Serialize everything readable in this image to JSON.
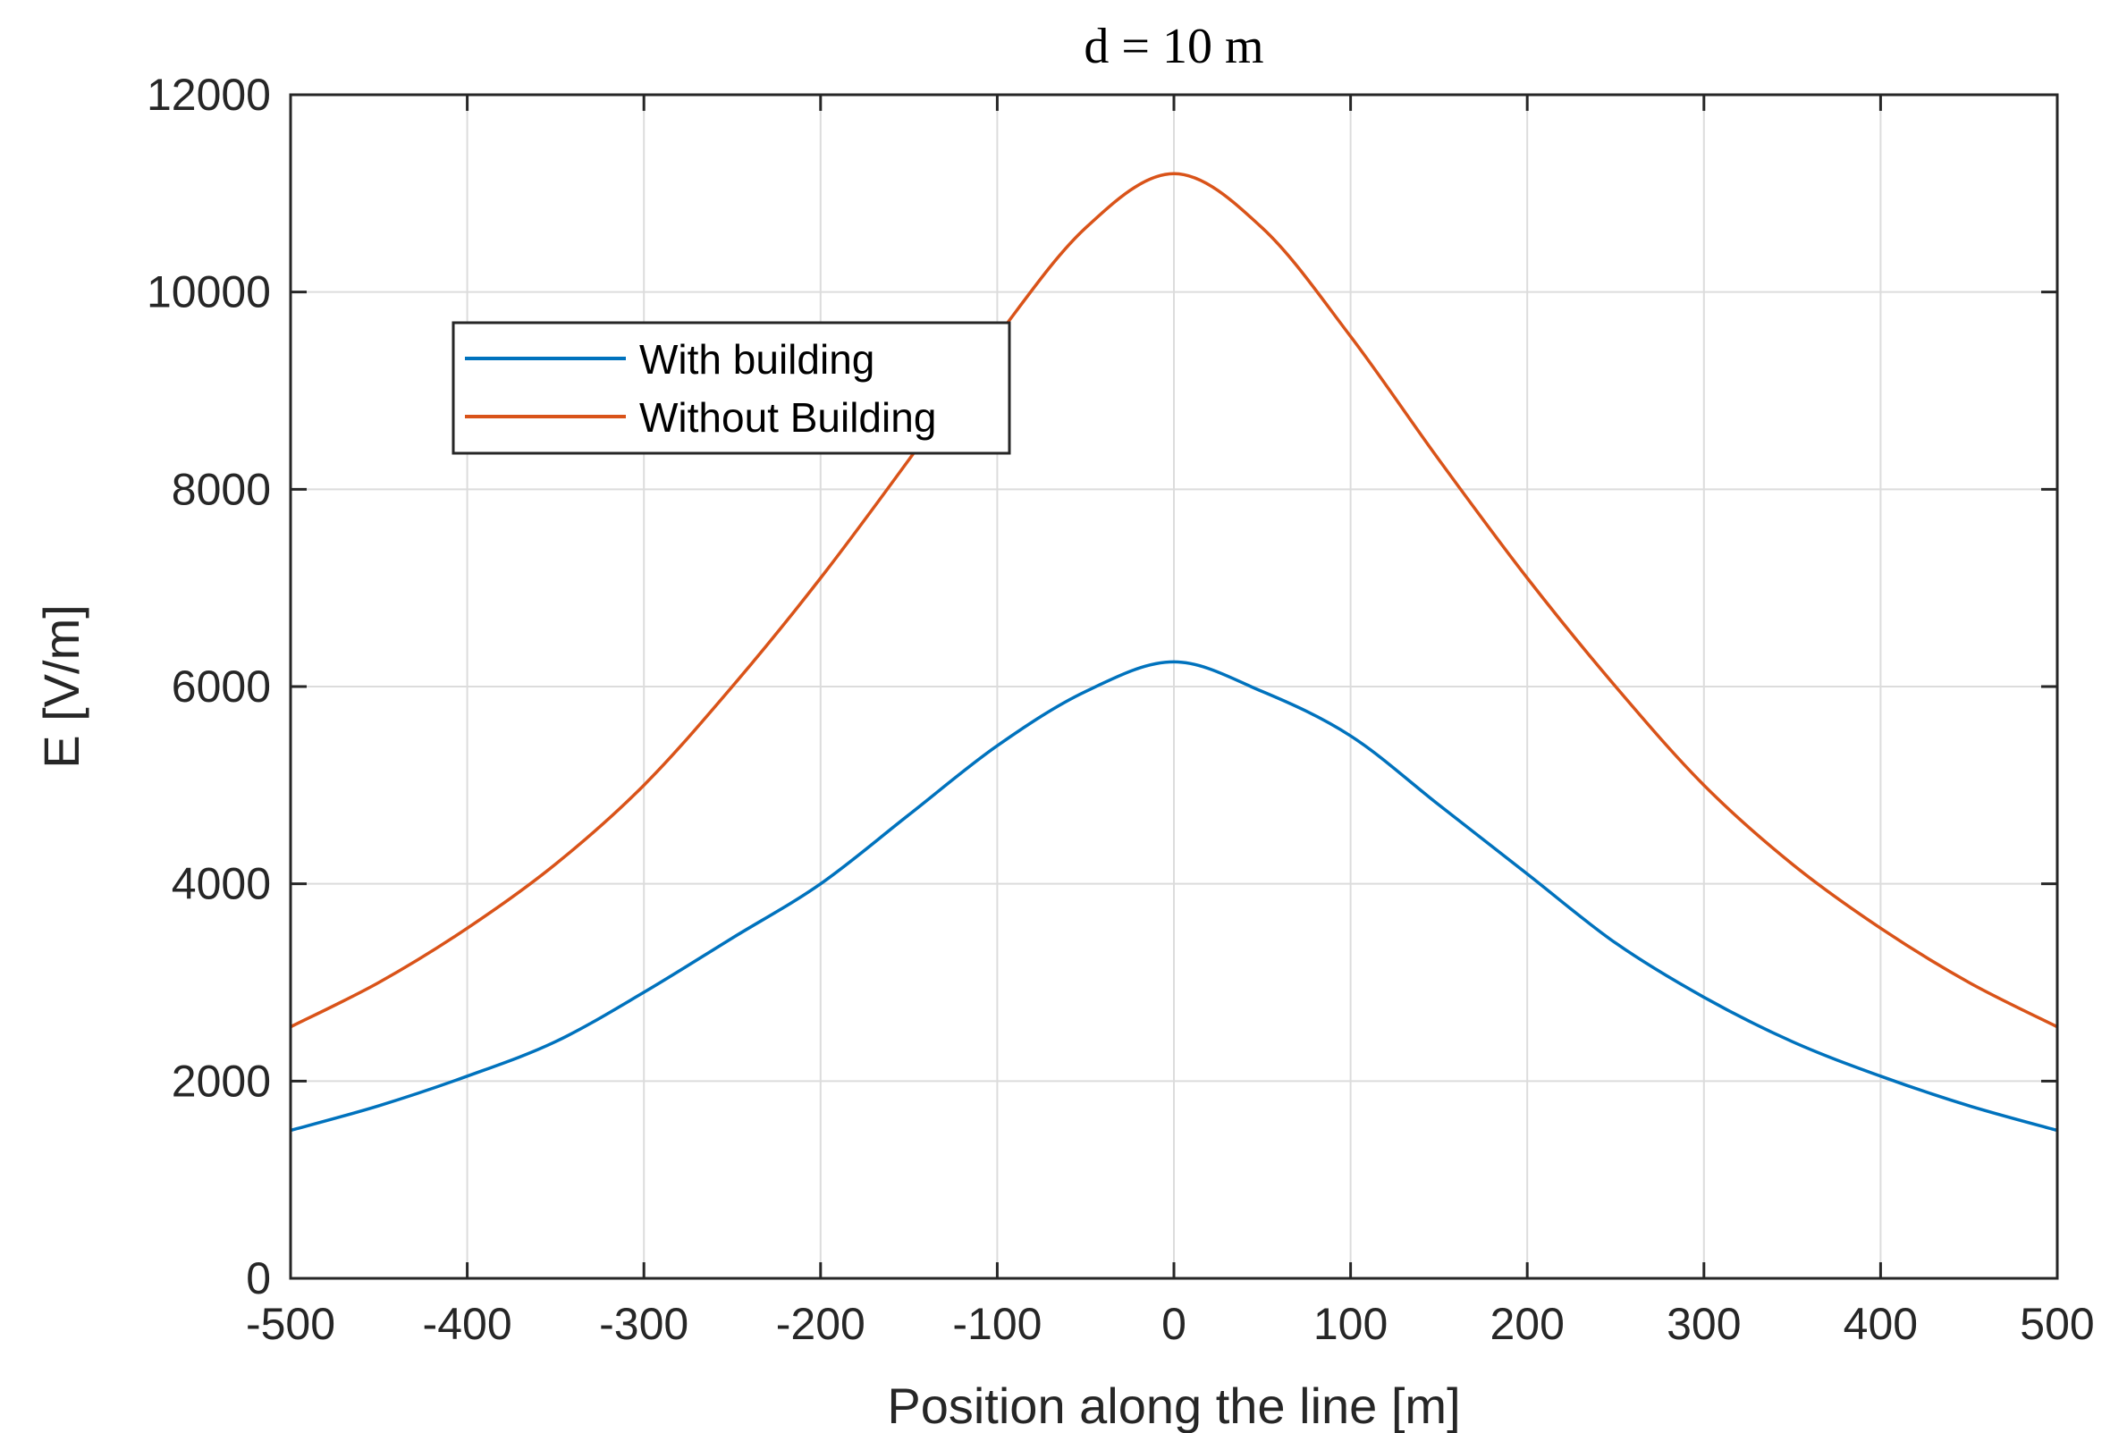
{
  "chart_data": {
    "type": "line",
    "title": "d = 10 m",
    "xlabel": "Position along the line [m]",
    "ylabel": "E [V/m]",
    "xlim": [
      -500,
      500
    ],
    "ylim": [
      0,
      12000
    ],
    "xticks": [
      -500,
      -400,
      -300,
      -200,
      -100,
      0,
      100,
      200,
      300,
      400,
      500
    ],
    "yticks": [
      0,
      2000,
      4000,
      6000,
      8000,
      10000,
      12000
    ],
    "grid": true,
    "legend_position": "upper-left",
    "x": [
      -500,
      -450,
      -400,
      -350,
      -300,
      -250,
      -200,
      -150,
      -100,
      -50,
      0,
      50,
      100,
      150,
      200,
      250,
      300,
      350,
      400,
      450,
      500
    ],
    "series": [
      {
        "name": "With building",
        "color": "#0072BD",
        "values": [
          1500,
          1750,
          2050,
          2400,
          2900,
          3450,
          4000,
          4700,
          5400,
          5950,
          6250,
          5950,
          5500,
          4800,
          4100,
          3400,
          2850,
          2400,
          2050,
          1750,
          1500
        ]
      },
      {
        "name": "Without Building",
        "color": "#D95319",
        "values": [
          2550,
          3000,
          3550,
          4200,
          5000,
          6000,
          7100,
          8300,
          9550,
          10650,
          11200,
          10650,
          9550,
          8300,
          7100,
          6000,
          5000,
          4200,
          3550,
          3000,
          2550
        ]
      }
    ]
  }
}
